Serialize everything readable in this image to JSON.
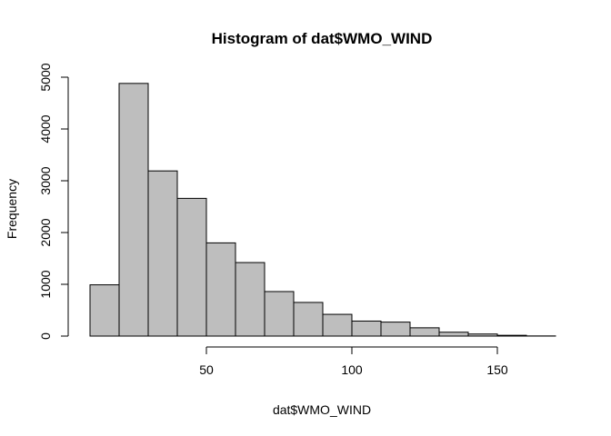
{
  "chart_data": {
    "type": "bar",
    "title": "Histogram of dat$WMO_WIND",
    "xlabel": "dat$WMO_WIND",
    "ylabel": "Frequency",
    "bins": [
      {
        "from": 10,
        "to": 20,
        "count": 990
      },
      {
        "from": 20,
        "to": 30,
        "count": 4880
      },
      {
        "from": 30,
        "to": 40,
        "count": 3190
      },
      {
        "from": 40,
        "to": 50,
        "count": 2660
      },
      {
        "from": 50,
        "to": 60,
        "count": 1800
      },
      {
        "from": 60,
        "to": 70,
        "count": 1420
      },
      {
        "from": 70,
        "to": 80,
        "count": 860
      },
      {
        "from": 80,
        "to": 90,
        "count": 650
      },
      {
        "from": 90,
        "to": 100,
        "count": 420
      },
      {
        "from": 100,
        "to": 110,
        "count": 290
      },
      {
        "from": 110,
        "to": 120,
        "count": 270
      },
      {
        "from": 120,
        "to": 130,
        "count": 160
      },
      {
        "from": 130,
        "to": 140,
        "count": 75
      },
      {
        "from": 140,
        "to": 150,
        "count": 40
      },
      {
        "from": 150,
        "to": 160,
        "count": 15
      },
      {
        "from": 160,
        "to": 170,
        "count": 3
      }
    ],
    "x_ticks": [
      "50",
      "100",
      "150"
    ],
    "y_ticks": [
      "0",
      "1000",
      "2000",
      "3000",
      "4000",
      "5000"
    ],
    "xlim": [
      10,
      170
    ],
    "ylim": [
      0,
      5000
    ],
    "bar_color": "#bebebe",
    "grid": false,
    "legend": "none"
  }
}
